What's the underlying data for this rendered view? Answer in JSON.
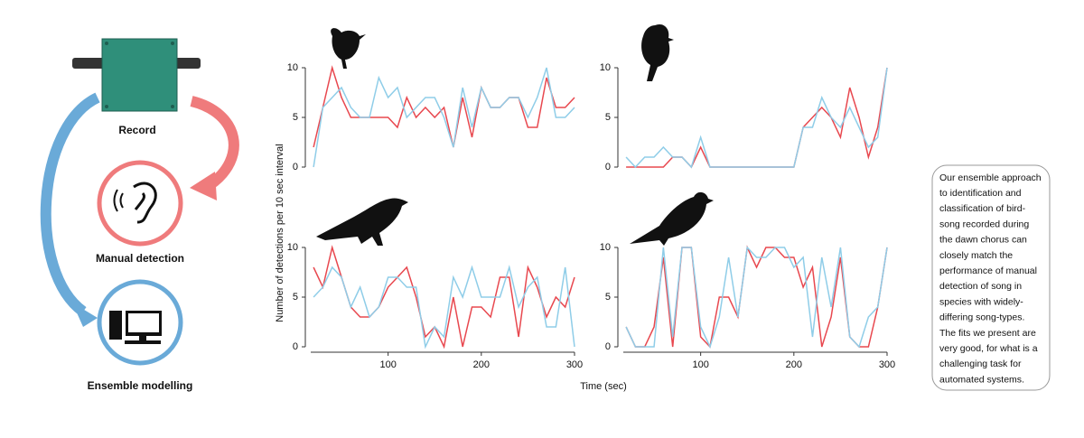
{
  "diagram": {
    "steps": [
      "Record",
      "Manual detection",
      "Ensemble modelling"
    ]
  },
  "summary": [
    "Our ensemble approach",
    "to identification and",
    "classification of bird-",
    "song recorded during",
    "the dawn chorus can",
    "closely match the",
    "performance of manual",
    "detection of song in",
    "species with widely-",
    "differing song-types.",
    "The fits we present are",
    "very good, for what is a",
    "challenging task for",
    "automated systems."
  ],
  "axes": {
    "y_label": "Number of detections per 10 sec interval",
    "x_label": "Time (sec)"
  },
  "chart_data": [
    {
      "type": "line",
      "x": [
        20,
        30,
        40,
        50,
        60,
        70,
        80,
        90,
        100,
        110,
        120,
        130,
        140,
        150,
        160,
        170,
        180,
        190,
        200,
        210,
        220,
        230,
        240,
        250,
        260,
        270,
        280,
        290,
        300
      ],
      "xlim": [
        17,
        300
      ],
      "ylim": [
        0,
        10
      ],
      "yticks": [
        0,
        5,
        10
      ],
      "series": [
        {
          "color": "#e8484f",
          "values": [
            2,
            6,
            10,
            7,
            5,
            5,
            5,
            5,
            5,
            4,
            7,
            5,
            6,
            5,
            6,
            2,
            7,
            3,
            8,
            6,
            6,
            7,
            7,
            4,
            4,
            9,
            6,
            6,
            7
          ]
        },
        {
          "color": "#8fcde8",
          "values": [
            0,
            6,
            7,
            8,
            6,
            5,
            5,
            9,
            7,
            8,
            5,
            6,
            7,
            7,
            5,
            2,
            8,
            4,
            8,
            6,
            6,
            7,
            7,
            5,
            7,
            10,
            5,
            5,
            6
          ]
        }
      ]
    },
    {
      "type": "line",
      "x": [
        20,
        30,
        40,
        50,
        60,
        70,
        80,
        90,
        100,
        110,
        120,
        130,
        140,
        150,
        160,
        170,
        180,
        190,
        200,
        210,
        220,
        230,
        240,
        250,
        260,
        270,
        280,
        290,
        300
      ],
      "xlim": [
        17,
        300
      ],
      "ylim": [
        0,
        10
      ],
      "yticks": [
        0,
        5,
        10
      ],
      "series": [
        {
          "color": "#e8484f",
          "values": [
            0,
            0,
            0,
            0,
            0,
            1,
            1,
            0,
            2,
            0,
            0,
            0,
            0,
            0,
            0,
            0,
            0,
            0,
            0,
            4,
            5,
            6,
            5,
            3,
            8,
            5,
            1,
            4,
            10
          ]
        },
        {
          "color": "#8fcde8",
          "values": [
            1,
            0,
            1,
            1,
            2,
            1,
            1,
            0,
            3,
            0,
            0,
            0,
            0,
            0,
            0,
            0,
            0,
            0,
            0,
            4,
            4,
            7,
            5,
            4,
            6,
            4,
            2,
            3,
            10
          ]
        }
      ]
    },
    {
      "type": "line",
      "x": [
        20,
        30,
        40,
        50,
        60,
        70,
        80,
        90,
        100,
        110,
        120,
        130,
        140,
        150,
        160,
        170,
        180,
        190,
        200,
        210,
        220,
        230,
        240,
        250,
        260,
        270,
        280,
        290,
        300
      ],
      "xlim": [
        17,
        300
      ],
      "ylim": [
        0,
        10
      ],
      "yticks": [
        0,
        5,
        10
      ],
      "xticks": [
        100,
        200,
        300
      ],
      "series": [
        {
          "color": "#e8484f",
          "values": [
            8,
            6,
            10,
            7,
            4,
            3,
            3,
            4,
            6,
            7,
            8,
            5,
            1,
            2,
            0,
            5,
            0,
            4,
            4,
            3,
            7,
            7,
            1,
            8,
            6,
            3,
            5,
            4,
            7
          ]
        },
        {
          "color": "#8fcde8",
          "values": [
            5,
            6,
            8,
            7,
            4,
            6,
            3,
            4,
            7,
            7,
            6,
            6,
            0,
            2,
            1,
            7,
            5,
            8,
            5,
            5,
            5,
            8,
            4,
            6,
            7,
            2,
            2,
            8,
            0
          ]
        }
      ]
    },
    {
      "type": "line",
      "x": [
        20,
        30,
        40,
        50,
        60,
        70,
        80,
        90,
        100,
        110,
        120,
        130,
        140,
        150,
        160,
        170,
        180,
        190,
        200,
        210,
        220,
        230,
        240,
        250,
        260,
        270,
        280,
        290,
        300
      ],
      "xlim": [
        17,
        300
      ],
      "ylim": [
        0,
        10
      ],
      "yticks": [
        0,
        5,
        10
      ],
      "xticks": [
        100,
        200,
        300
      ],
      "series": [
        {
          "color": "#e8484f",
          "values": [
            2,
            0,
            0,
            2,
            9,
            0,
            10,
            10,
            1,
            0,
            5,
            5,
            3,
            10,
            8,
            10,
            10,
            9,
            9,
            6,
            8,
            0,
            3,
            9,
            1,
            0,
            0,
            4,
            10
          ]
        },
        {
          "color": "#8fcde8",
          "values": [
            2,
            0,
            0,
            0,
            10,
            1,
            10,
            10,
            2,
            0,
            3,
            9,
            3,
            10,
            9,
            9,
            10,
            10,
            8,
            9,
            1,
            9,
            4,
            10,
            1,
            0,
            3,
            4,
            10
          ]
        }
      ]
    }
  ]
}
